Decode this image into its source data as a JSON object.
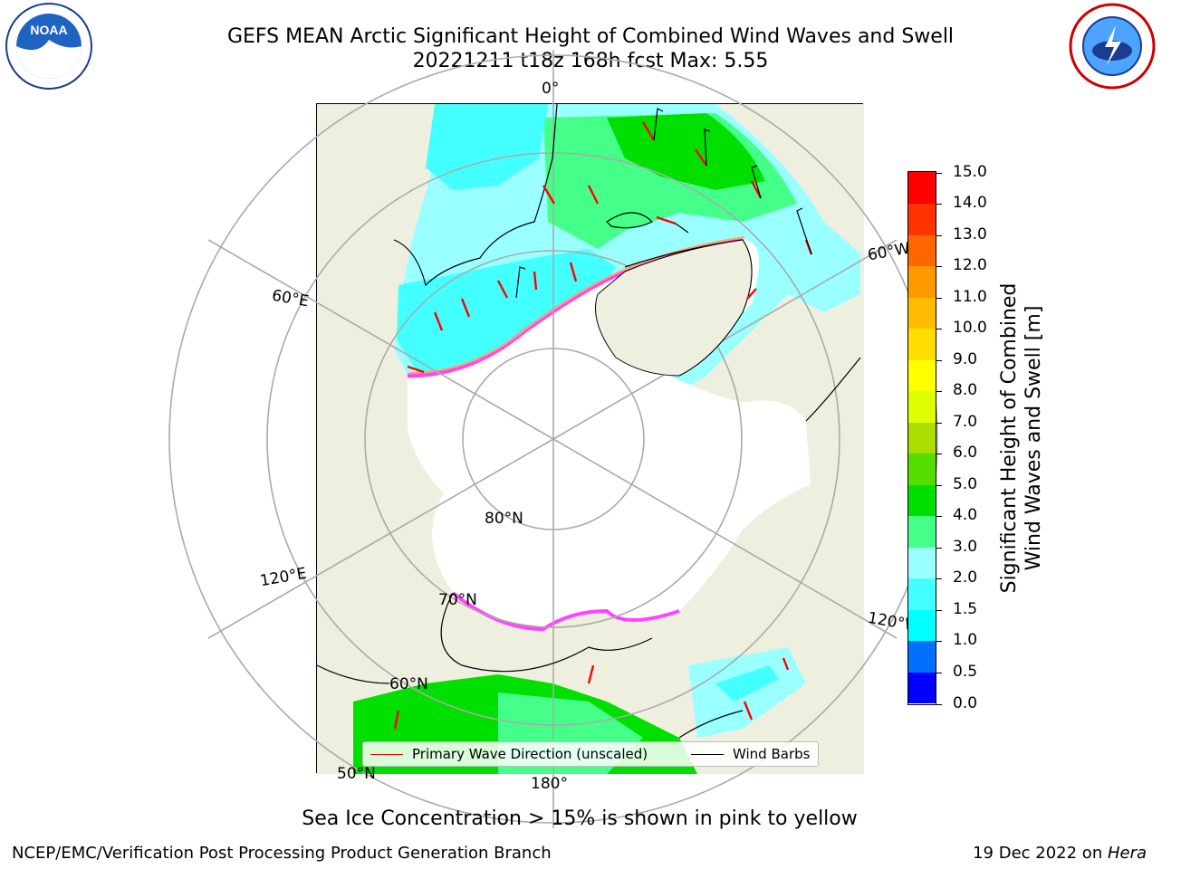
{
  "title": {
    "line1": "GEFS MEAN Arctic Significant Height of Combined Wind Waves and Swell",
    "line2": "20221211 t18z 168h fcst   Max: 5.55"
  },
  "logos": {
    "left": "NOAA",
    "right": "NATIONAL WEATHER SERVICE"
  },
  "map": {
    "labels": {
      "lon_0": "0°",
      "lon_60e": "60°E",
      "lon_60w": "60°W",
      "lon_120e": "120°E",
      "lon_120w": "120°W",
      "lon_180": "180°",
      "lat_80": "80°N",
      "lat_70": "70°N",
      "lat_60": "60°N",
      "lat_50": "50°N"
    },
    "colors": {
      "land": "#efefdf",
      "ice_edge": [
        "#ff44ff",
        "#ffaa55",
        "#ffdd44"
      ]
    }
  },
  "legend": {
    "primary_wave": "Primary Wave Direction (unscaled)",
    "wind_barbs": "Wind Barbs",
    "primary_color": "#ff0000",
    "barb_color": "#000000"
  },
  "colorbar": {
    "label_line1": "Significant Height of Combined",
    "label_line2": "Wind Waves and Swell [m]",
    "ticks": [
      "0.0",
      "0.5",
      "1.0",
      "1.5",
      "2.0",
      "3.0",
      "4.0",
      "5.0",
      "6.0",
      "7.0",
      "8.0",
      "9.0",
      "10.0",
      "11.0",
      "12.0",
      "13.0",
      "14.0",
      "15.0"
    ],
    "colors": [
      "#0000ff",
      "#0070ff",
      "#00ffff",
      "#44ffff",
      "#9affff",
      "#44ff88",
      "#00e000",
      "#55dd00",
      "#aadd00",
      "#ddff00",
      "#ffff00",
      "#ffdd00",
      "#ffbb00",
      "#ff9900",
      "#ff6600",
      "#ff3300",
      "#ff0000"
    ]
  },
  "footer": {
    "caption": "Sea Ice Concentration > 15% is shown in pink to yellow",
    "left_credit": "NCEP/EMC/Verification Post Processing Product Generation Branch",
    "right_date": "19 Dec 2022 on ",
    "right_host": "Hera"
  }
}
